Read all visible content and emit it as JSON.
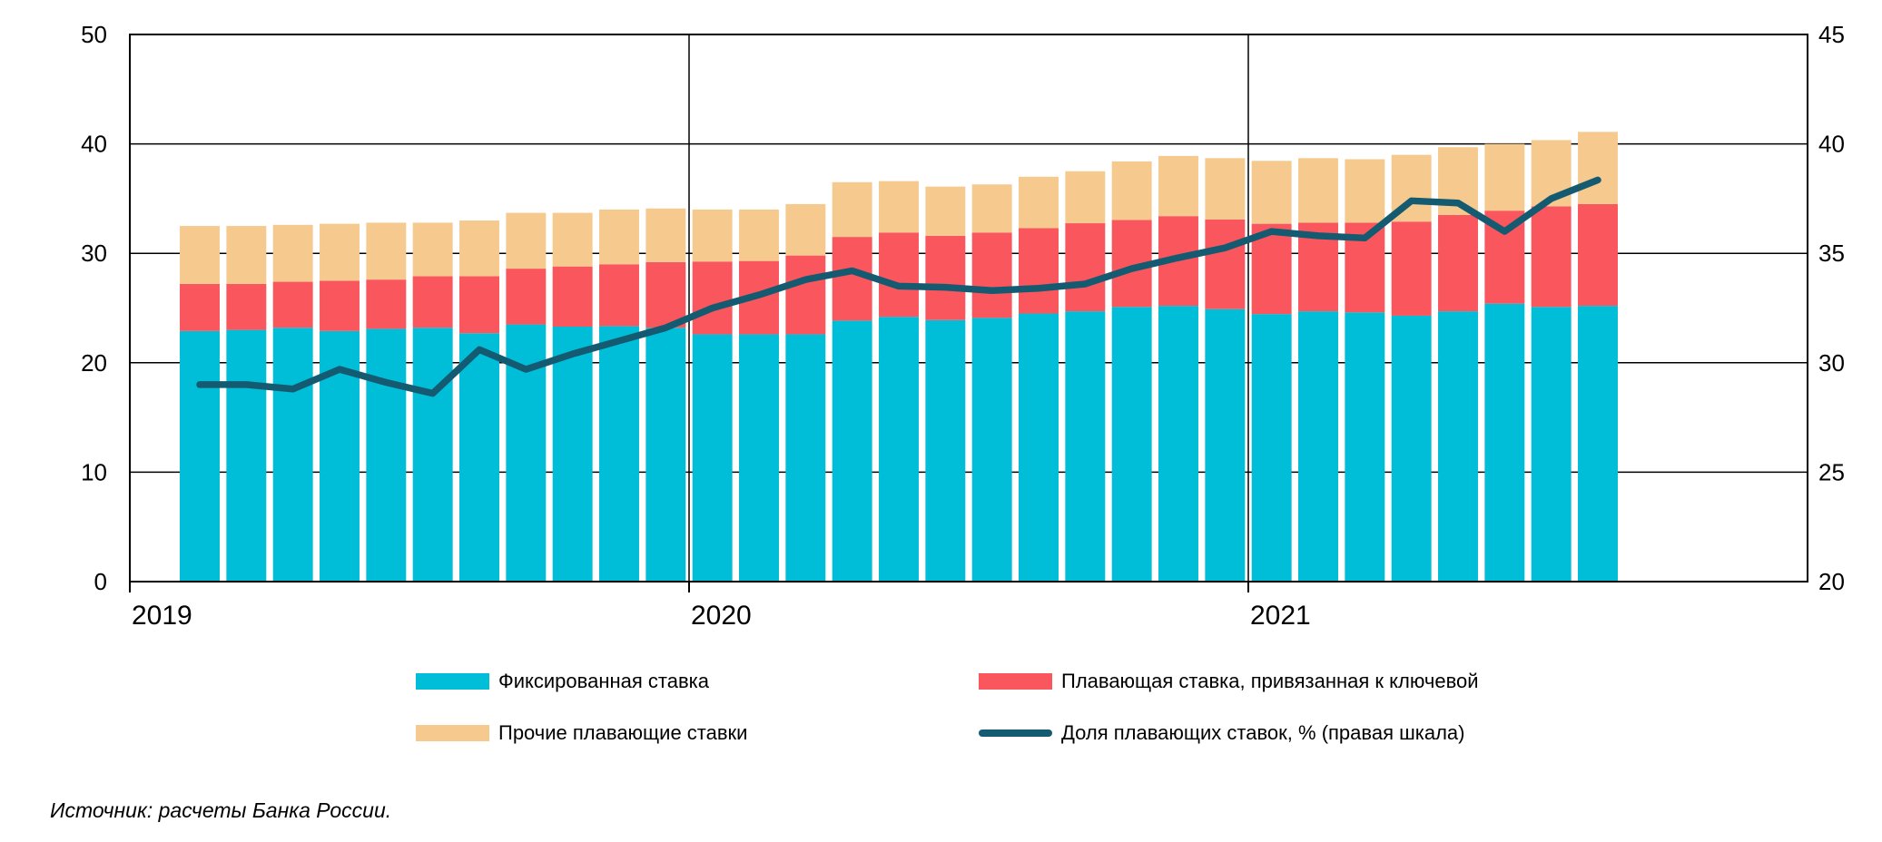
{
  "source_note": "Источник: расчеты Банка России.",
  "chart_data": {
    "type": "bar",
    "subtype": "stacked-bars-with-line",
    "title": "",
    "categories": [
      "2019-02",
      "2019-03",
      "2019-04",
      "2019-05",
      "2019-06",
      "2019-07",
      "2019-08",
      "2019-09",
      "2019-10",
      "2019-11",
      "2019-12",
      "2020-01",
      "2020-02",
      "2020-03",
      "2020-04",
      "2020-05",
      "2020-06",
      "2020-07",
      "2020-08",
      "2020-09",
      "2020-10",
      "2020-11",
      "2020-12",
      "2021-01",
      "2021-02",
      "2021-03",
      "2021-04",
      "2021-05",
      "2021-06",
      "2021-07",
      "2021-08"
    ],
    "series": [
      {
        "name": "Фиксированная ставка",
        "type": "bar",
        "stack": true,
        "color": "#00BDD8",
        "values": [
          22.9,
          23.0,
          23.2,
          22.9,
          23.1,
          23.2,
          22.7,
          23.5,
          23.3,
          23.35,
          23.2,
          22.6,
          22.6,
          22.6,
          23.85,
          24.2,
          23.9,
          24.1,
          24.5,
          24.7,
          25.1,
          25.2,
          24.9,
          24.45,
          24.7,
          24.6,
          24.3,
          24.7,
          25.4,
          25.1,
          25.2
        ]
      },
      {
        "name": "Плавающая ставка, привязанная к ключевой",
        "type": "bar",
        "stack": true,
        "color": "#F9565E",
        "values": [
          4.3,
          4.2,
          4.2,
          4.6,
          4.5,
          4.7,
          5.2,
          5.1,
          5.5,
          5.65,
          6.0,
          6.65,
          6.7,
          7.2,
          7.65,
          7.7,
          7.7,
          7.8,
          7.8,
          8.05,
          7.95,
          8.2,
          8.2,
          8.25,
          8.1,
          8.2,
          8.6,
          8.8,
          8.5,
          9.2,
          9.3
        ]
      },
      {
        "name": "Прочие плавающие ставки",
        "type": "bar",
        "stack": true,
        "color": "#F6CA8E",
        "values": [
          5.3,
          5.3,
          5.2,
          5.2,
          5.2,
          4.9,
          5.1,
          5.1,
          4.9,
          5.0,
          4.9,
          4.75,
          4.7,
          4.7,
          5.0,
          4.7,
          4.5,
          4.4,
          4.7,
          4.75,
          5.35,
          5.5,
          5.6,
          5.75,
          5.9,
          5.8,
          6.1,
          6.2,
          6.1,
          6.05,
          6.6
        ]
      },
      {
        "name": "Доля плавающих ставок, % (правая шкала)",
        "type": "line",
        "axis": "right",
        "color": "#145A70",
        "values": [
          29.0,
          29.0,
          28.8,
          29.7,
          29.1,
          28.6,
          30.6,
          29.7,
          30.4,
          31.0,
          31.6,
          32.5,
          33.1,
          33.8,
          34.2,
          33.5,
          33.45,
          33.3,
          33.4,
          33.6,
          34.3,
          34.8,
          35.25,
          36.0,
          35.8,
          35.7,
          37.4,
          37.3,
          36.0,
          37.5,
          38.35
        ]
      }
    ],
    "left_axis": {
      "min": 0,
      "max": 50,
      "ticks": [
        0,
        10,
        20,
        30,
        40,
        50
      ]
    },
    "right_axis": {
      "min": 20,
      "max": 45,
      "ticks": [
        20,
        25,
        30,
        35,
        40,
        45
      ]
    },
    "x_axis": {
      "months_span": 36,
      "first_bar_month_offset": 1,
      "year_ticks": [
        {
          "label": "2019",
          "boundary": 0
        },
        {
          "label": "2020",
          "boundary": 12
        },
        {
          "label": "2021",
          "boundary": 24
        }
      ]
    },
    "grid": true,
    "grid_color": "#000000",
    "frame_color": "#000000",
    "legend_position": "bottom"
  },
  "legend": {
    "row1_col1": "Фиксированная ставка",
    "row1_col2": "Плавающая ставка, привязанная к ключевой",
    "row2_col1": "Прочие плавающие ставки",
    "row2_col2": "Доля плавающих ставок, % (правая шкала)"
  }
}
